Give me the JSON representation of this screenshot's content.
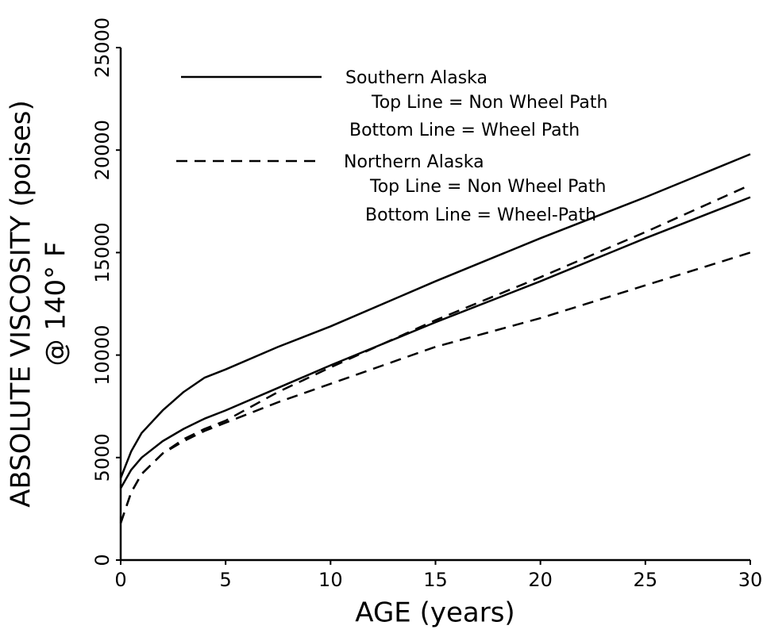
{
  "chart_data": {
    "type": "line",
    "x_label": "AGE (years)",
    "y_label": [
      "ABSOLUTE VISCOSITY (poises)",
      "@ 140° F"
    ],
    "x": [
      0,
      0.5,
      1,
      2,
      3,
      4,
      5,
      7.5,
      10,
      15,
      20,
      25,
      30
    ],
    "series": [
      {
        "color": "#000000",
        "line_style": "solid",
        "values": [
          4000,
          5300,
          6200,
          7300,
          8200,
          8900,
          9300,
          10400,
          11400,
          13600,
          15700,
          17700,
          19800
        ]
      },
      {
        "color": "#000000",
        "line_style": "solid",
        "values": [
          3500,
          4400,
          5000,
          5800,
          6400,
          6900,
          7300,
          8400,
          9500,
          11600,
          13600,
          15700,
          17700
        ]
      },
      {
        "color": "#000000",
        "line_style": "dashed",
        "values": [
          1800,
          3300,
          4200,
          5200,
          5900,
          6400,
          6800,
          8200,
          9400,
          11700,
          13800,
          16000,
          18300
        ]
      },
      {
        "color": "#000000",
        "line_style": "dashed",
        "values": [
          1800,
          3300,
          4200,
          5200,
          5800,
          6300,
          6700,
          7700,
          8600,
          10400,
          11800,
          13400,
          15000
        ]
      }
    ],
    "legend": [
      {
        "label": "Southern Alaska",
        "line_style": "solid",
        "notes": [
          "Top Line = Non Wheel Path",
          "Bottom Line = Wheel Path"
        ]
      },
      {
        "label": "Northern Alaska",
        "line_style": "dashed",
        "notes": [
          "Top Line = Non Wheel Path",
          "Bottom Line = Wheel-Path"
        ]
      }
    ],
    "xlim": [
      0,
      30
    ],
    "xticks": [
      0,
      5,
      10,
      15,
      20,
      25,
      30
    ],
    "ylim": [
      0,
      25000
    ],
    "yticks": [
      0,
      5000,
      10000,
      15000,
      20000,
      25000
    ]
  }
}
